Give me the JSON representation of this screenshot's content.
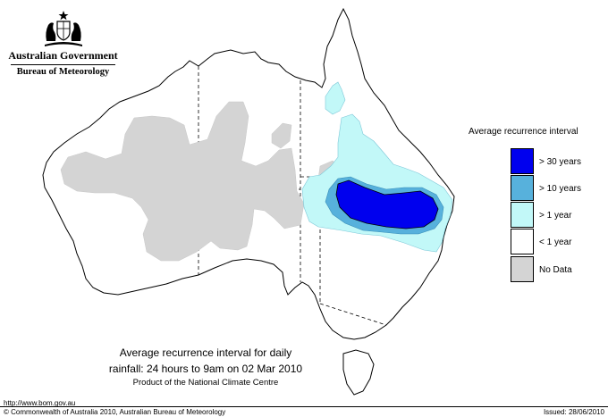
{
  "header": {
    "org_line1": "Australian Government",
    "org_line2": "Bureau of Meteorology"
  },
  "legend": {
    "title": "Average recurrence interval",
    "items": [
      {
        "label": "> 30 years",
        "color": "#0000ee"
      },
      {
        "label": "> 10 years",
        "color": "#57b1dc"
      },
      {
        "label": "> 1 year",
        "color": "#c2f8f8"
      },
      {
        "label": "< 1 year",
        "color": "#ffffff"
      },
      {
        "label": "No Data",
        "color": "#d4d4d4"
      }
    ]
  },
  "caption": {
    "line1": "Average recurrence interval for daily",
    "line2": "rainfall: 24 hours to 9am on 02 Mar 2010",
    "line3": "Product of the National Climate Centre"
  },
  "footer": {
    "url": "http://www.bom.gov.au",
    "copyright": "© Commonwealth of Australia 2010, Australian Bureau of Meteorology",
    "issued": "Issued: 28/06/2010"
  },
  "icons": {
    "crest": "commonwealth-coat-of-arms-icon"
  }
}
